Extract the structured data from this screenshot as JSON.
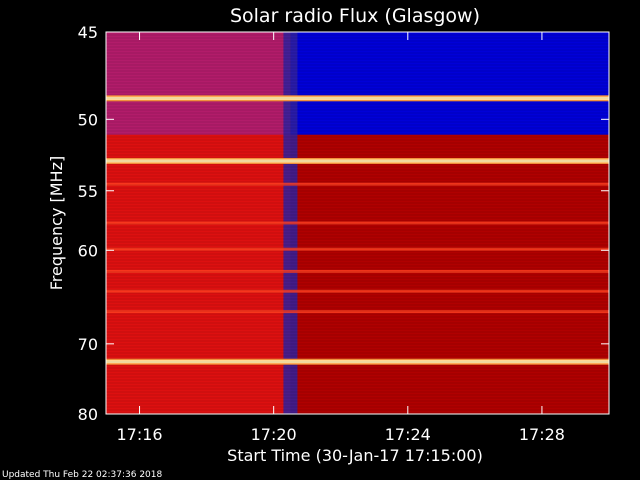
{
  "chart_data": {
    "type": "heatmap",
    "title": "Solar radio Flux (Glasgow)",
    "xlabel": "Start Time (30-Jan-17 17:15:00)",
    "ylabel": "Frequency [MHz]",
    "x_ticks": [
      "17:16",
      "17:20",
      "17:24",
      "17:28"
    ],
    "x_tick_minutes": [
      1,
      5,
      9,
      13
    ],
    "xlim_minutes": [
      0,
      15
    ],
    "y_ticks": [
      45,
      50,
      55,
      60,
      70,
      80
    ],
    "ylim": [
      45,
      80
    ],
    "y_scale": "reciprocal",
    "grid": false,
    "features": {
      "event_minute": 5.5,
      "bright_lines_mhz": [
        48.7,
        52.8,
        72.3
      ],
      "moderate_lines_mhz": [
        54.5,
        57.6,
        59.9,
        62.0,
        64.0,
        66.2
      ],
      "low_band_blue_after_event_mhz": [
        45,
        51
      ]
    },
    "colors": {
      "background": "#000000",
      "deep_red": "#b00000",
      "red": "#dd1010",
      "blue": "#0000d8",
      "bright_line": "#ffe8a8",
      "text": "#ffffff"
    }
  },
  "footer": {
    "updated": "Updated Thu Feb 22 02:37:36 2018"
  }
}
